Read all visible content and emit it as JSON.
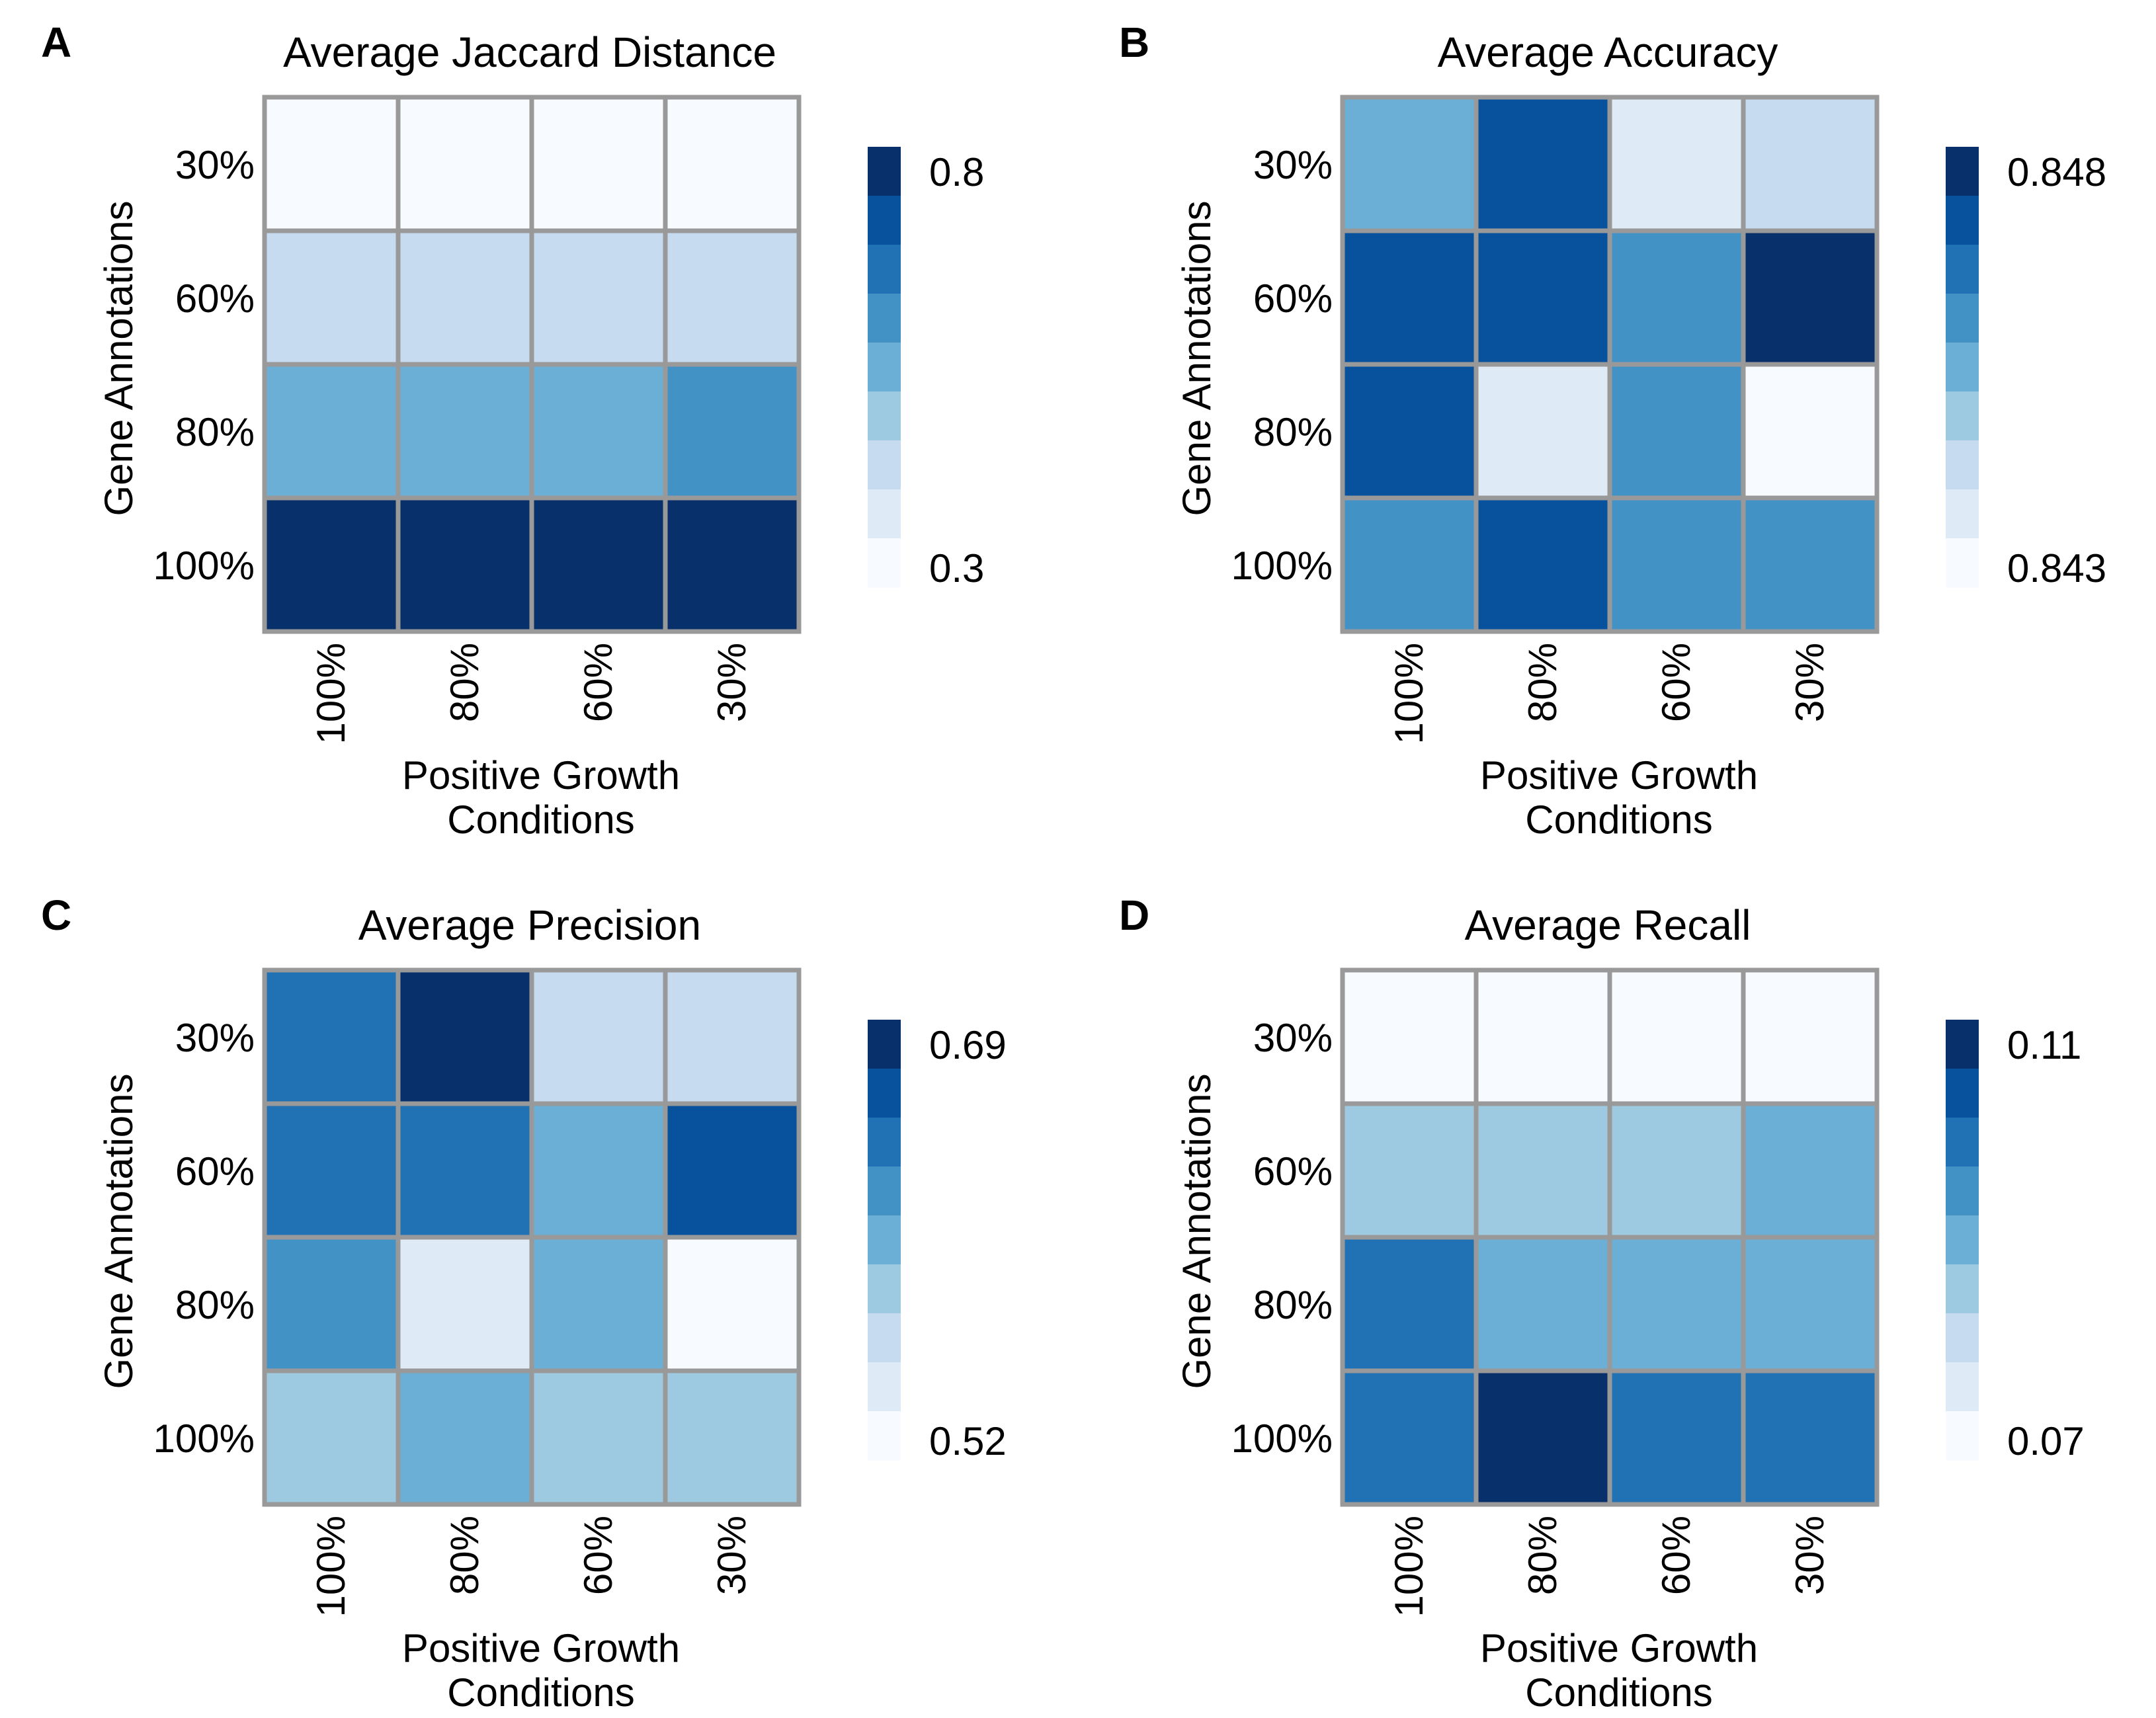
{
  "palette": {
    "bins": [
      "#f7fbff",
      "#deebf7",
      "#c6dbef",
      "#9ecae1",
      "#6baed6",
      "#4292c6",
      "#2171b5",
      "#08519c",
      "#08306b"
    ],
    "grid_color": "#999999"
  },
  "chart_data": [
    {
      "type": "heatmap",
      "panel_label": "A",
      "title": "Average Jaccard Distance",
      "xlabel_lines": [
        "Positive Growth",
        "Conditions"
      ],
      "ylabel": "Gene Annotations",
      "x_categories": [
        "100%",
        "80%",
        "60%",
        "30%"
      ],
      "y_categories": [
        "30%",
        "60%",
        "80%",
        "100%"
      ],
      "color_bins": [
        [
          0,
          0,
          0,
          0
        ],
        [
          2,
          2,
          2,
          2
        ],
        [
          4,
          4,
          4,
          5
        ],
        [
          8,
          8,
          8,
          8
        ]
      ],
      "colorbar": {
        "max_label": "0.8",
        "min_label": "0.3"
      }
    },
    {
      "type": "heatmap",
      "panel_label": "B",
      "title": "Average Accuracy",
      "xlabel_lines": [
        "Positive Growth",
        "Conditions"
      ],
      "ylabel": "Gene Annotations",
      "x_categories": [
        "100%",
        "80%",
        "60%",
        "30%"
      ],
      "y_categories": [
        "30%",
        "60%",
        "80%",
        "100%"
      ],
      "color_bins": [
        [
          4,
          7,
          1,
          2
        ],
        [
          7,
          7,
          5,
          8
        ],
        [
          7,
          1,
          5,
          0
        ],
        [
          5,
          7,
          5,
          5
        ]
      ],
      "colorbar": {
        "max_label": "0.848",
        "min_label": "0.843"
      }
    },
    {
      "type": "heatmap",
      "panel_label": "C",
      "title": "Average Precision",
      "xlabel_lines": [
        "Positive Growth",
        "Conditions"
      ],
      "ylabel": "Gene Annotations",
      "x_categories": [
        "100%",
        "80%",
        "60%",
        "30%"
      ],
      "y_categories": [
        "30%",
        "60%",
        "80%",
        "100%"
      ],
      "color_bins": [
        [
          6,
          8,
          2,
          2
        ],
        [
          6,
          6,
          4,
          7
        ],
        [
          5,
          1,
          4,
          0
        ],
        [
          3,
          4,
          3,
          3
        ]
      ],
      "colorbar": {
        "max_label": "0.69",
        "min_label": "0.52"
      }
    },
    {
      "type": "heatmap",
      "panel_label": "D",
      "title": "Average Recall",
      "xlabel_lines": [
        "Positive Growth",
        "Conditions"
      ],
      "ylabel": "Gene Annotations",
      "x_categories": [
        "100%",
        "80%",
        "60%",
        "30%"
      ],
      "y_categories": [
        "30%",
        "60%",
        "80%",
        "100%"
      ],
      "color_bins": [
        [
          0,
          0,
          0,
          0
        ],
        [
          3,
          3,
          3,
          4
        ],
        [
          6,
          4,
          4,
          4
        ],
        [
          6,
          8,
          6,
          6
        ]
      ],
      "colorbar": {
        "max_label": "0.11",
        "min_label": "0.07"
      }
    }
  ]
}
